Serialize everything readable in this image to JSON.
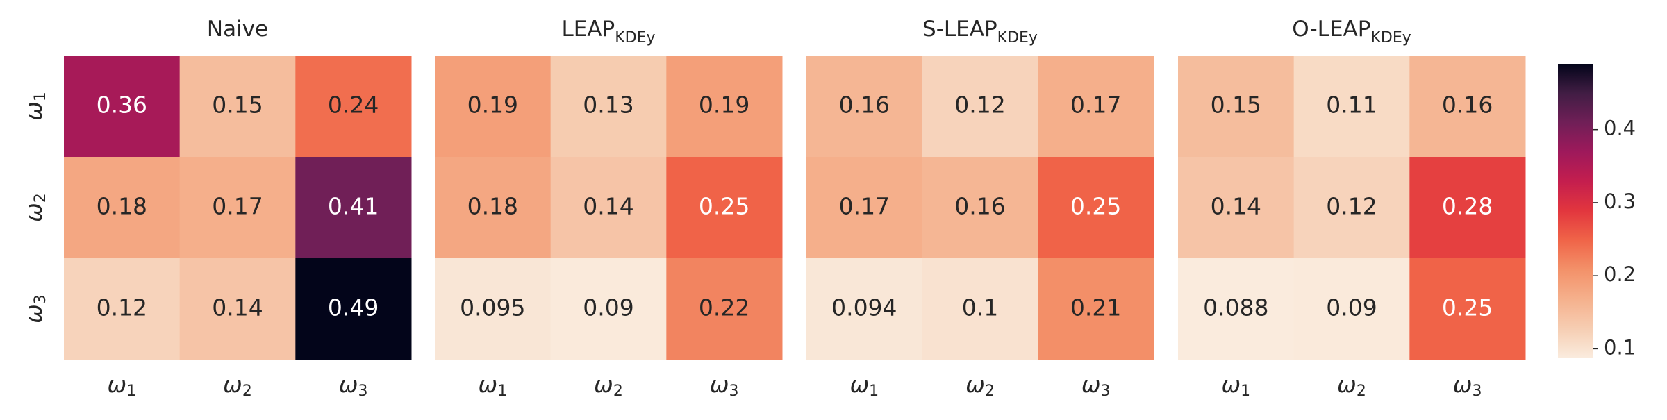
{
  "chart_data": [
    {
      "type": "heatmap",
      "title": "Naive",
      "title_sub": "",
      "rows": [
        "ω1",
        "ω2",
        "ω3"
      ],
      "cols": [
        "ω1",
        "ω2",
        "ω3"
      ],
      "values": [
        [
          0.36,
          0.15,
          0.24
        ],
        [
          0.18,
          0.17,
          0.41
        ],
        [
          0.12,
          0.14,
          0.49
        ]
      ],
      "labels": [
        [
          "0.36",
          "0.15",
          "0.24"
        ],
        [
          "0.18",
          "0.17",
          "0.41"
        ],
        [
          "0.12",
          "0.14",
          "0.49"
        ]
      ]
    },
    {
      "type": "heatmap",
      "title": "LEAP",
      "title_sub": "KDEy",
      "rows": [
        "ω1",
        "ω2",
        "ω3"
      ],
      "cols": [
        "ω1",
        "ω2",
        "ω3"
      ],
      "values": [
        [
          0.19,
          0.13,
          0.19
        ],
        [
          0.18,
          0.14,
          0.25
        ],
        [
          0.095,
          0.09,
          0.22
        ]
      ],
      "labels": [
        [
          "0.19",
          "0.13",
          "0.19"
        ],
        [
          "0.18",
          "0.14",
          "0.25"
        ],
        [
          "0.095",
          "0.09",
          "0.22"
        ]
      ]
    },
    {
      "type": "heatmap",
      "title": "S-LEAP",
      "title_sub": "KDEy",
      "rows": [
        "ω1",
        "ω2",
        "ω3"
      ],
      "cols": [
        "ω1",
        "ω2",
        "ω3"
      ],
      "values": [
        [
          0.16,
          0.12,
          0.17
        ],
        [
          0.17,
          0.16,
          0.25
        ],
        [
          0.094,
          0.1,
          0.21
        ]
      ],
      "labels": [
        [
          "0.16",
          "0.12",
          "0.17"
        ],
        [
          "0.17",
          "0.16",
          "0.25"
        ],
        [
          "0.094",
          "0.1",
          "0.21"
        ]
      ]
    },
    {
      "type": "heatmap",
      "title": "O-LEAP",
      "title_sub": "KDEy",
      "rows": [
        "ω1",
        "ω2",
        "ω3"
      ],
      "cols": [
        "ω1",
        "ω2",
        "ω3"
      ],
      "values": [
        [
          0.15,
          0.11,
          0.16
        ],
        [
          0.14,
          0.12,
          0.28
        ],
        [
          0.088,
          0.09,
          0.25
        ]
      ],
      "labels": [
        [
          "0.15",
          "0.11",
          "0.16"
        ],
        [
          "0.14",
          "0.12",
          "0.28"
        ],
        [
          "0.088",
          "0.09",
          "0.25"
        ]
      ]
    }
  ],
  "colorbar": {
    "colormap": "rocket_r",
    "vmin": 0.088,
    "vmax": 0.49,
    "ticks": [
      0.1,
      0.2,
      0.3,
      0.4
    ],
    "tick_labels": [
      "0.1",
      "0.2",
      "0.3",
      "0.4"
    ]
  }
}
